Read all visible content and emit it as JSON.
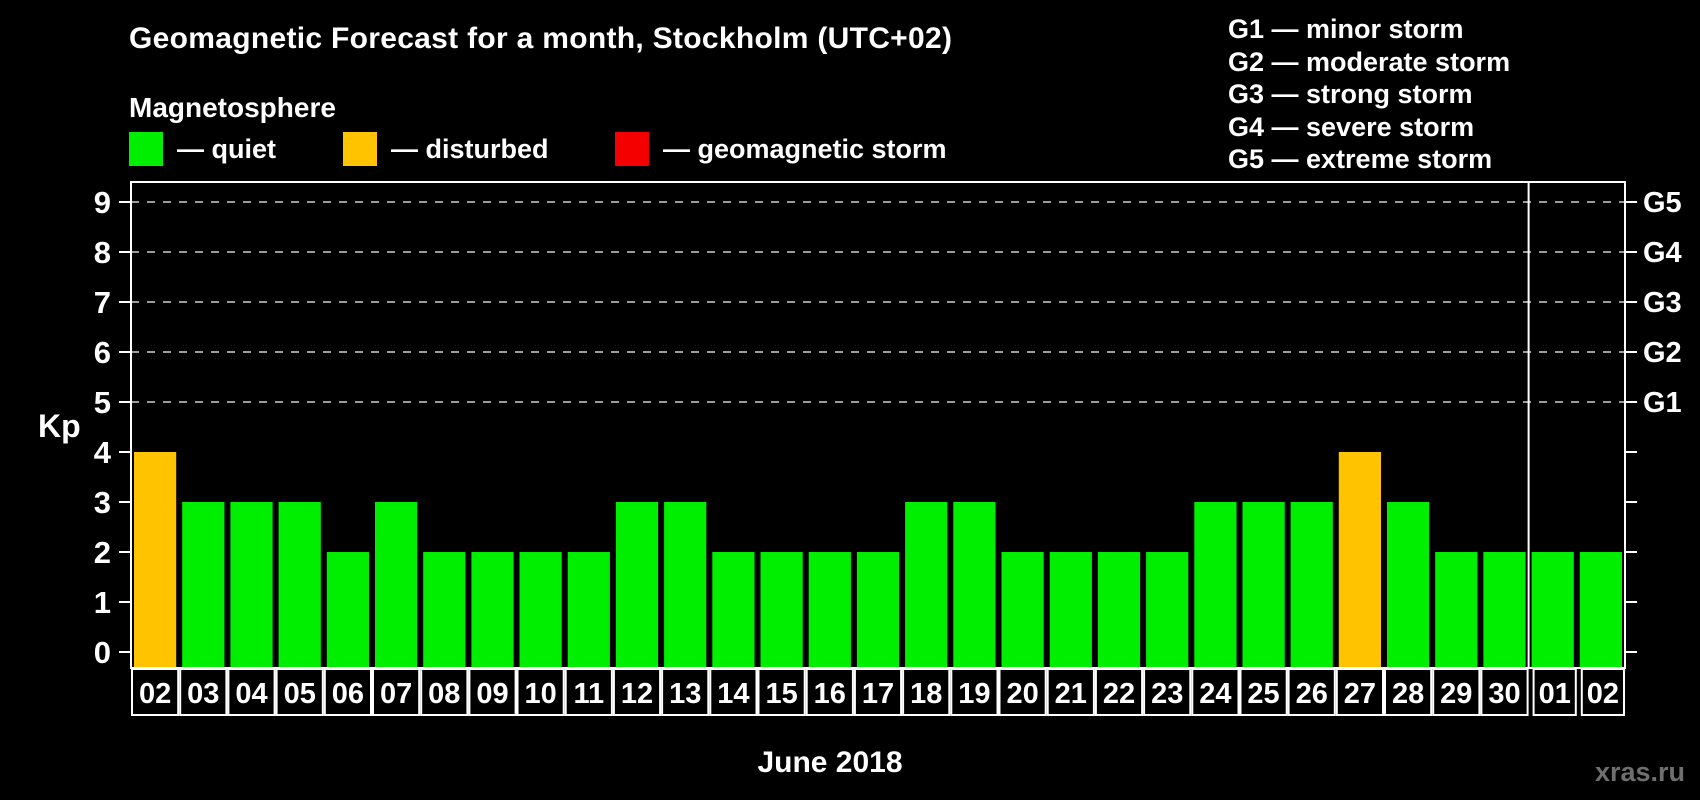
{
  "header": {
    "title": "Geomagnetic Forecast for a month, Stockholm (UTC+02)",
    "subtitle": "Magnetosphere"
  },
  "legend": {
    "items": [
      {
        "status": "quiet",
        "label": "— quiet",
        "color": "#00EE00"
      },
      {
        "status": "disturbed",
        "label": "— disturbed",
        "color": "#FFC300"
      },
      {
        "status": "storm",
        "label": "— geomagnetic storm",
        "color": "#F50000"
      }
    ]
  },
  "g_legend": {
    "lines": [
      "G1 — minor storm",
      "G2 — moderate storm",
      "G3 — strong storm",
      "G4 — severe storm",
      "G5 — extreme storm"
    ]
  },
  "axes": {
    "y_label": "Kp",
    "x_label": "June 2018"
  },
  "watermark": "xras.ru",
  "chart_data": {
    "type": "bar",
    "title": "Geomagnetic Forecast for a month, Stockholm (UTC+02)",
    "xlabel": "June 2018",
    "ylabel": "Kp",
    "ylim": [
      0,
      9
    ],
    "categories": [
      "02",
      "03",
      "04",
      "05",
      "06",
      "07",
      "08",
      "09",
      "10",
      "11",
      "12",
      "13",
      "14",
      "15",
      "16",
      "17",
      "18",
      "19",
      "20",
      "21",
      "22",
      "23",
      "24",
      "25",
      "26",
      "27",
      "28",
      "29",
      "30",
      "01",
      "02"
    ],
    "values": [
      4,
      3,
      3,
      3,
      2,
      3,
      2,
      2,
      2,
      2,
      3,
      3,
      2,
      2,
      2,
      2,
      3,
      3,
      2,
      2,
      2,
      2,
      3,
      3,
      3,
      4,
      3,
      2,
      2,
      2,
      2
    ],
    "statuses": [
      "disturbed",
      "quiet",
      "quiet",
      "quiet",
      "quiet",
      "quiet",
      "quiet",
      "quiet",
      "quiet",
      "quiet",
      "quiet",
      "quiet",
      "quiet",
      "quiet",
      "quiet",
      "quiet",
      "quiet",
      "quiet",
      "quiet",
      "quiet",
      "quiet",
      "quiet",
      "quiet",
      "quiet",
      "quiet",
      "disturbed",
      "quiet",
      "quiet",
      "quiet",
      "quiet",
      "quiet"
    ],
    "month_boundary_after_index": 28,
    "y_ticks": [
      0,
      1,
      2,
      3,
      4,
      5,
      6,
      7,
      8,
      9
    ],
    "gridline_kp": [
      5,
      6,
      7,
      8,
      9
    ],
    "right_labels": [
      {
        "text": "G1",
        "kp": 5
      },
      {
        "text": "G2",
        "kp": 6
      },
      {
        "text": "G3",
        "kp": 7
      },
      {
        "text": "G4",
        "kp": 8
      },
      {
        "text": "G5",
        "kp": 9
      }
    ],
    "legend_position": "top",
    "grid": "dashed-horizontal-at-storm-levels",
    "background": "#000000"
  }
}
